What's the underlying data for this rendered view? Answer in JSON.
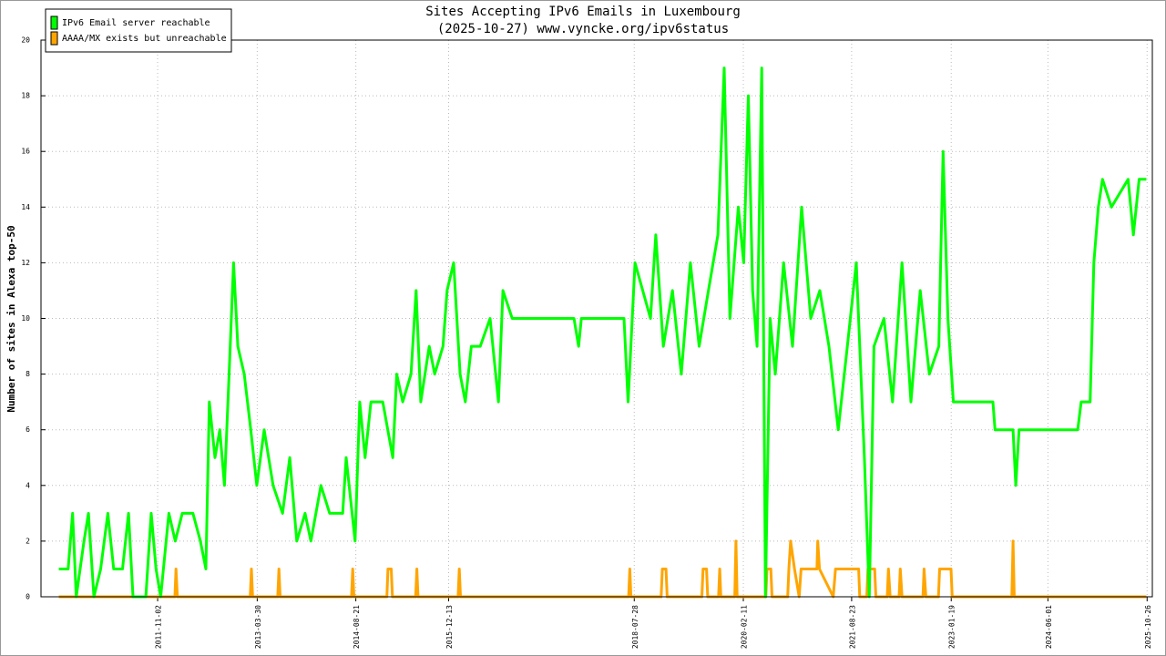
{
  "chart_data": {
    "type": "line",
    "title": "Sites Accepting IPv6 Emails in Luxembourg",
    "subtitle": "(2025-10-27) www.vyncke.org/ipv6status",
    "y_label": "Number of sites in Alexa top-50",
    "xlim": [
      "2010-03-10",
      "2025-11-22"
    ],
    "xticks": [
      "2011-11-02",
      "2013-03-30",
      "2014-08-21",
      "2015-12-13",
      "2018-07-28",
      "2020-02-11",
      "2021-08-23",
      "2023-01-19",
      "2024-06-01",
      "2025-10-26"
    ],
    "ylim": [
      0,
      20
    ],
    "yticks": [
      0,
      2,
      4,
      6,
      8,
      10,
      12,
      14,
      16,
      18,
      20
    ],
    "grid": true,
    "legend": "upper left",
    "series": [
      {
        "name": "IPv6 Email server reachable",
        "color": "#00ff00",
        "x": [
          "2010-06-10",
          "2010-07-28",
          "2010-08-20",
          "2010-09-08",
          "2010-10-18",
          "2010-11-10",
          "2010-12-08",
          "2011-01-12",
          "2011-02-18",
          "2011-03-20",
          "2011-05-05",
          "2011-06-05",
          "2011-06-28",
          "2011-09-02",
          "2011-09-30",
          "2011-10-25",
          "2011-11-18",
          "2011-12-30",
          "2012-02-01",
          "2012-03-08",
          "2012-05-02",
          "2012-06-10",
          "2012-07-08",
          "2012-07-26",
          "2012-08-24",
          "2012-09-18",
          "2012-10-12",
          "2012-11-05",
          "2012-11-28",
          "2012-12-20",
          "2013-01-22",
          "2013-02-25",
          "2013-03-28",
          "2013-05-05",
          "2013-06-20",
          "2013-08-08",
          "2013-09-14",
          "2013-10-20",
          "2013-12-02",
          "2014-01-01",
          "2014-02-22",
          "2014-04-08",
          "2014-06-14",
          "2014-07-02",
          "2014-08-17",
          "2014-09-10",
          "2014-10-08",
          "2014-11-07",
          "2015-01-07",
          "2015-02-28",
          "2015-03-20",
          "2015-04-20",
          "2015-06-02",
          "2015-06-28",
          "2015-07-22",
          "2015-09-04",
          "2015-10-02",
          "2015-11-14",
          "2015-12-05",
          "2016-01-08",
          "2016-02-10",
          "2016-03-08",
          "2016-04-08",
          "2016-05-24",
          "2016-07-14",
          "2016-08-26",
          "2016-09-18",
          "2016-11-05",
          "2017-09-20",
          "2017-10-14",
          "2017-10-28",
          "2018-06-05",
          "2018-06-26",
          "2018-08-01",
          "2018-10-20",
          "2018-11-16",
          "2018-12-25",
          "2019-02-10",
          "2019-03-28",
          "2019-05-14",
          "2019-06-28",
          "2019-08-15",
          "2019-10-03",
          "2019-11-04",
          "2019-12-04",
          "2020-01-16",
          "2020-02-13",
          "2020-03-08",
          "2020-03-30",
          "2020-04-22",
          "2020-05-16",
          "2020-06-04",
          "2020-06-28",
          "2020-07-25",
          "2020-09-06",
          "2020-10-22",
          "2020-12-08",
          "2021-01-24",
          "2021-03-12",
          "2021-04-28",
          "2021-06-15",
          "2021-08-01",
          "2021-09-16",
          "2021-10-28",
          "2021-11-22",
          "2021-12-16",
          "2022-02-06",
          "2022-03-22",
          "2022-05-10",
          "2022-06-25",
          "2022-08-12",
          "2022-09-28",
          "2022-11-16",
          "2022-12-08",
          "2023-01-02",
          "2023-01-30",
          "2023-08-22",
          "2023-09-02",
          "2023-12-04",
          "2023-12-18",
          "2024-01-04",
          "2024-11-02",
          "2024-11-20",
          "2025-01-05",
          "2025-01-24",
          "2025-02-16",
          "2025-03-10",
          "2025-04-25",
          "2025-07-20",
          "2025-08-16",
          "2025-09-15",
          "2025-10-22"
        ],
        "values": [
          1,
          1,
          3,
          0,
          2,
          3,
          0,
          1,
          3,
          1,
          1,
          3,
          0,
          0,
          3,
          1,
          0,
          3,
          2,
          3,
          3,
          2,
          1,
          7,
          5,
          6,
          4,
          8,
          12,
          9,
          8,
          6,
          4,
          6,
          4,
          3,
          5,
          2,
          3,
          2,
          4,
          3,
          3,
          5,
          2,
          7,
          5,
          7,
          7,
          5,
          8,
          7,
          8,
          11,
          7,
          9,
          8,
          9,
          11,
          12,
          8,
          7,
          9,
          9,
          10,
          7,
          11,
          10,
          10,
          9,
          10,
          10,
          7,
          12,
          10,
          13,
          9,
          11,
          8,
          12,
          9,
          11,
          13,
          19,
          10,
          14,
          12,
          18,
          11,
          9,
          19,
          0,
          10,
          8,
          12,
          9,
          14,
          10,
          11,
          9,
          6,
          9,
          12,
          5,
          0,
          9,
          10,
          7,
          12,
          7,
          11,
          8,
          9,
          16,
          10,
          7,
          7,
          6,
          6,
          4,
          6,
          6,
          7,
          7,
          12,
          14,
          15,
          14,
          15,
          13,
          15,
          15
        ]
      },
      {
        "name": "AAAA/MX exists but unreachable",
        "color": "#ffa500",
        "x": [
          "2010-06-10",
          "2012-01-30",
          "2012-02-05",
          "2012-02-12",
          "2013-02-22",
          "2013-02-28",
          "2013-03-06",
          "2013-07-14",
          "2013-07-20",
          "2013-07-26",
          "2014-07-30",
          "2014-08-05",
          "2014-08-11",
          "2015-01-28",
          "2015-02-03",
          "2015-02-20",
          "2015-02-26",
          "2015-06-26",
          "2015-07-02",
          "2015-07-08",
          "2016-01-31",
          "2016-02-06",
          "2016-02-12",
          "2018-06-29",
          "2018-07-05",
          "2018-07-11",
          "2018-12-14",
          "2018-12-20",
          "2019-01-08",
          "2019-01-14",
          "2019-07-12",
          "2019-07-18",
          "2019-08-05",
          "2019-08-11",
          "2019-10-06",
          "2019-10-12",
          "2019-10-18",
          "2019-12-29",
          "2020-01-04",
          "2020-01-10",
          "2020-06-06",
          "2020-06-12",
          "2020-07-02",
          "2020-07-08",
          "2020-09-27",
          "2020-10-03",
          "2020-10-12",
          "2020-11-01",
          "2020-11-25",
          "2020-12-05",
          "2021-02-25",
          "2021-03-01",
          "2021-03-10",
          "2021-05-20",
          "2021-06-01",
          "2021-09-28",
          "2021-10-04",
          "2021-11-09",
          "2021-11-15",
          "2021-12-20",
          "2021-12-26",
          "2022-02-23",
          "2022-03-01",
          "2022-03-10",
          "2022-04-25",
          "2022-05-01",
          "2022-05-10",
          "2022-08-26",
          "2022-09-01",
          "2022-09-10",
          "2022-11-14",
          "2022-11-20",
          "2023-01-18",
          "2023-01-24",
          "2023-11-28",
          "2023-12-04",
          "2023-12-10",
          "2025-10-22"
        ],
        "values": [
          0,
          0,
          1,
          0,
          0,
          1,
          0,
          0,
          1,
          0,
          0,
          1,
          0,
          0,
          1,
          1,
          0,
          0,
          1,
          0,
          0,
          1,
          0,
          0,
          1,
          0,
          0,
          1,
          1,
          0,
          0,
          1,
          1,
          0,
          0,
          1,
          0,
          0,
          2,
          0,
          0,
          1,
          1,
          0,
          0,
          1,
          2,
          1,
          0,
          1,
          1,
          2,
          1,
          0,
          1,
          1,
          0,
          0,
          1,
          1,
          0,
          0,
          1,
          0,
          0,
          1,
          0,
          0,
          1,
          0,
          0,
          1,
          1,
          0,
          0,
          2,
          0,
          0
        ]
      }
    ]
  }
}
